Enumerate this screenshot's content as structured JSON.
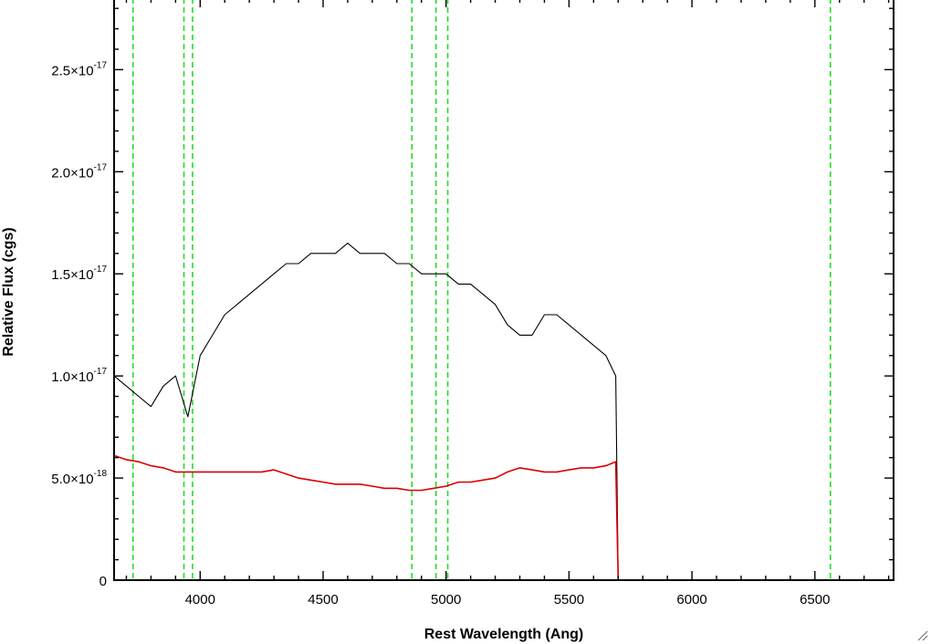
{
  "chart_data": {
    "type": "line",
    "title": "",
    "xlabel": "Rest Wavelength (Ang)",
    "ylabel": "Relative Flux (cgs)",
    "xlim": [
      3650,
      6820
    ],
    "ylim": [
      0,
      2.85e-17
    ],
    "x_ticks": [
      {
        "value": 4000,
        "label": "4000"
      },
      {
        "value": 4500,
        "label": "4500"
      },
      {
        "value": 5000,
        "label": "5000"
      },
      {
        "value": 5500,
        "label": "5500"
      },
      {
        "value": 6000,
        "label": "6000"
      },
      {
        "value": 6500,
        "label": "6500"
      }
    ],
    "y_ticks": [
      {
        "value": 0,
        "mantissa": "0",
        "exponent": ""
      },
      {
        "value": 5e-18,
        "mantissa": "5.0×10",
        "exponent": "-18"
      },
      {
        "value": 1e-17,
        "mantissa": "1.0×10",
        "exponent": "-17"
      },
      {
        "value": 1.5e-17,
        "mantissa": "1.5×10",
        "exponent": "-17"
      },
      {
        "value": 2e-17,
        "mantissa": "2.0×10",
        "exponent": "-17"
      },
      {
        "value": 2.5e-17,
        "mantissa": "2.5×10",
        "exponent": "-17"
      }
    ],
    "line_markers": {
      "color": "#22dd22",
      "style": "dashed",
      "x": [
        3727,
        3934,
        3969,
        4861,
        4959,
        5007,
        6563
      ]
    },
    "series": [
      {
        "color": "#000000",
        "x": [
          3650,
          3700,
          3750,
          3800,
          3850,
          3900,
          3950,
          4000,
          4050,
          4100,
          4150,
          4200,
          4250,
          4300,
          4350,
          4400,
          4450,
          4500,
          4550,
          4600,
          4650,
          4700,
          4750,
          4800,
          4850,
          4900,
          4950,
          5000,
          5050,
          5100,
          5150,
          5200,
          5250,
          5300,
          5350,
          5400,
          5450,
          5500,
          5550,
          5600,
          5650,
          5690,
          5700,
          6820
        ],
        "values": [
          1e-17,
          9.5e-18,
          9e-18,
          8.5e-18,
          9.5e-18,
          1e-17,
          8e-18,
          1.1e-17,
          1.2e-17,
          1.3e-17,
          1.35e-17,
          1.4e-17,
          1.45e-17,
          1.5e-17,
          1.55e-17,
          1.55e-17,
          1.6e-17,
          1.6e-17,
          1.6e-17,
          1.65e-17,
          1.6e-17,
          1.6e-17,
          1.6e-17,
          1.55e-17,
          1.55e-17,
          1.5e-17,
          1.5e-17,
          1.5e-17,
          1.45e-17,
          1.45e-17,
          1.4e-17,
          1.35e-17,
          1.25e-17,
          1.2e-17,
          1.2e-17,
          1.3e-17,
          1.3e-17,
          1.25e-17,
          1.2e-17,
          1.15e-17,
          1.1e-17,
          1e-17,
          0,
          0
        ]
      },
      {
        "color": "#dd0000",
        "x": [
          3650,
          3700,
          3750,
          3800,
          3850,
          3900,
          3950,
          4000,
          4050,
          4100,
          4150,
          4200,
          4250,
          4300,
          4350,
          4400,
          4450,
          4500,
          4550,
          4600,
          4650,
          4700,
          4750,
          4800,
          4850,
          4900,
          4950,
          5000,
          5050,
          5100,
          5150,
          5200,
          5250,
          5300,
          5350,
          5400,
          5450,
          5500,
          5550,
          5600,
          5650,
          5690,
          5700,
          6820
        ],
        "values": [
          6.1e-18,
          5.9e-18,
          5.8e-18,
          5.6e-18,
          5.5e-18,
          5.3e-18,
          5.3e-18,
          5.3e-18,
          5.3e-18,
          5.3e-18,
          5.3e-18,
          5.3e-18,
          5.3e-18,
          5.4e-18,
          5.2e-18,
          5e-18,
          4.9e-18,
          4.8e-18,
          4.7e-18,
          4.7e-18,
          4.7e-18,
          4.6e-18,
          4.5e-18,
          4.5e-18,
          4.4e-18,
          4.4e-18,
          4.5e-18,
          4.6e-18,
          4.8e-18,
          4.8e-18,
          4.9e-18,
          5e-18,
          5.3e-18,
          5.5e-18,
          5.4e-18,
          5.3e-18,
          5.3e-18,
          5.4e-18,
          5.5e-18,
          5.5e-18,
          5.6e-18,
          5.8e-18,
          0,
          0
        ]
      }
    ]
  }
}
